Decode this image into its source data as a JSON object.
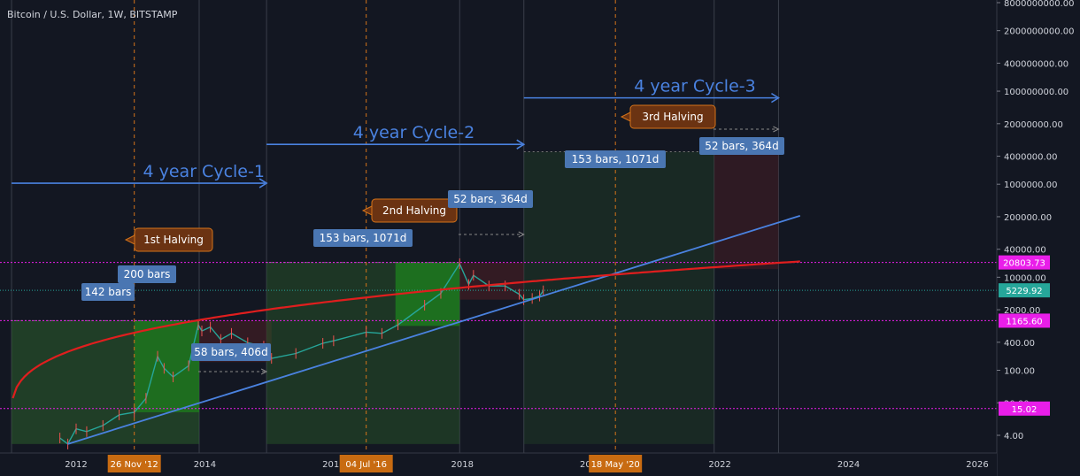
{
  "header": {
    "title": "Bitcoin / U.S. Dollar, 1W, BITSTAMP"
  },
  "chart_data": {
    "type": "line",
    "title": "Bitcoin / U.S. Dollar, 1W, BITSTAMP",
    "scale": "log",
    "x_ticks": [
      "2012",
      "2014",
      "2016",
      "2018",
      "2020",
      "2022",
      "2024",
      "2026"
    ],
    "y_ticks": [
      "8000000000.00",
      "2000000000.00",
      "400000000.00",
      "100000000.00",
      "20000000.00",
      "4000000.00",
      "1000000.00",
      "200000.00",
      "40000.00",
      "10000.00",
      "2000.00",
      "400.00",
      "100.00",
      "20.00",
      "4.00"
    ],
    "price_labels": [
      {
        "value": "20803.73",
        "color": "#e91ee9"
      },
      {
        "value": "5229.92",
        "color": "#26a69a"
      },
      {
        "value": "1165.60",
        "color": "#e91ee9"
      },
      {
        "value": "15.02",
        "color": "#e91ee9"
      }
    ],
    "date_markers": [
      "26 Nov '12",
      "04 Jul '16",
      "18 May '20"
    ],
    "halvings": [
      "1st Halving",
      "2nd Halving",
      "3rd Halving"
    ],
    "cycles": [
      "4 year Cycle-1",
      "4 year Cycle-2",
      "4 year Cycle-3"
    ],
    "bar_labels": [
      "142 bars",
      "200 bars",
      "58 bars, 406d",
      "153 bars, 1071d",
      "52 bars, 364d",
      "153 bars, 1071d",
      "52 bars, 364d"
    ],
    "price_series": [
      [
        "2011-10-01",
        3.5
      ],
      [
        "2011-11-15",
        2.6
      ],
      [
        "2012-01-01",
        5.5
      ],
      [
        "2012-03-01",
        4.8
      ],
      [
        "2012-06-01",
        6.5
      ],
      [
        "2012-09-01",
        11
      ],
      [
        "2012-11-26",
        12.5
      ],
      [
        "2013-02-01",
        25
      ],
      [
        "2013-04-08",
        200
      ],
      [
        "2013-05-15",
        110
      ],
      [
        "2013-07-05",
        72
      ],
      [
        "2013-10-01",
        125
      ],
      [
        "2013-11-25",
        950
      ],
      [
        "2013-12-15",
        700
      ],
      [
        "2014-02-01",
        850
      ],
      [
        "2014-04-01",
        460
      ],
      [
        "2014-06-01",
        620
      ],
      [
        "2014-09-01",
        390
      ],
      [
        "2014-12-01",
        330
      ],
      [
        "2015-01-14",
        180
      ],
      [
        "2015-06-01",
        230
      ],
      [
        "2015-11-01",
        380
      ],
      [
        "2016-01-01",
        430
      ],
      [
        "2016-07-04",
        660
      ],
      [
        "2016-10-01",
        620
      ],
      [
        "2017-01-01",
        950
      ],
      [
        "2017-06-01",
        2500
      ],
      [
        "2017-09-01",
        4500
      ],
      [
        "2017-12-17",
        19500
      ],
      [
        "2018-02-06",
        7000
      ],
      [
        "2018-03-05",
        11000
      ],
      [
        "2018-06-01",
        6500
      ],
      [
        "2018-09-01",
        6500
      ],
      [
        "2018-11-20",
        4300
      ],
      [
        "2018-12-15",
        3300
      ],
      [
        "2019-02-01",
        3500
      ],
      [
        "2019-03-15",
        3950
      ],
      [
        "2019-04-05",
        5100
      ]
    ],
    "ylim": [
      2.5,
      9000000000
    ],
    "xlim": [
      "2010-10-15",
      "2026-08-20"
    ],
    "colors": {
      "background": "#131722",
      "price_line_red": "#e01e1e",
      "trend_line_blue": "#4a82e0",
      "magenta": "#e91ee9",
      "cycle_text": "#4a82e0",
      "halving_fill": "#6b3312",
      "halving_border": "#d4731a",
      "label_blue": "#4a76b2",
      "green_zone": "#2b5e2b",
      "bright_green_zone": "#1e7e1e",
      "red_zone": "#4a1e24",
      "date_marker_bg": "#c86b11"
    }
  }
}
